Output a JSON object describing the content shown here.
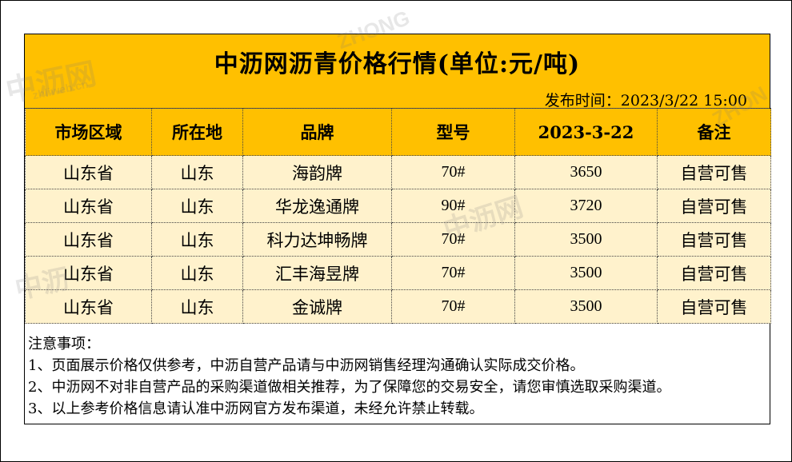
{
  "title": "中沥网沥青价格行情(单位:元/吨)",
  "publish_time_label": "发布时间：",
  "publish_time_value": "2023/3/22  15:00",
  "columns": [
    "市场区域",
    "所在地",
    "品牌",
    "型号",
    "2023-3-22",
    "备注"
  ],
  "rows": [
    [
      "山东省",
      "山东",
      "海韵牌",
      "70#",
      "3650",
      "自营可售"
    ],
    [
      "山东省",
      "山东",
      "华龙逸通牌",
      "90#",
      "3720",
      "自营可售"
    ],
    [
      "山东省",
      "山东",
      "科力达坤畅牌",
      "70#",
      "3500",
      "自营可售"
    ],
    [
      "山东省",
      "山东",
      "汇丰海昱牌",
      "70#",
      "3500",
      "自营可售"
    ],
    [
      "山东省",
      "山东",
      "金诚牌",
      "70#",
      "3500",
      "自营可售"
    ]
  ],
  "notes": {
    "heading": "注意事项：",
    "items": [
      "1、页面展示价格仅供参考，中沥自营产品请与中沥网销售经理沟通确认实际成交价格。",
      "2、中沥网不对非自营产品的采购渠道做相关推荐，为了保障您的交易安全，请您审慎选取采购渠道。",
      "3、以上参考价格信息请认准中沥网官方发布渠道，未经允许禁止转载。"
    ]
  },
  "watermarks": [
    "ZHONG",
    "中沥网",
    "zhliweb.cn",
    "中沥网",
    "ZHON",
    "中沥"
  ],
  "colors": {
    "header_bg": "#ffc000",
    "row_bg": "#fff2cc"
  }
}
